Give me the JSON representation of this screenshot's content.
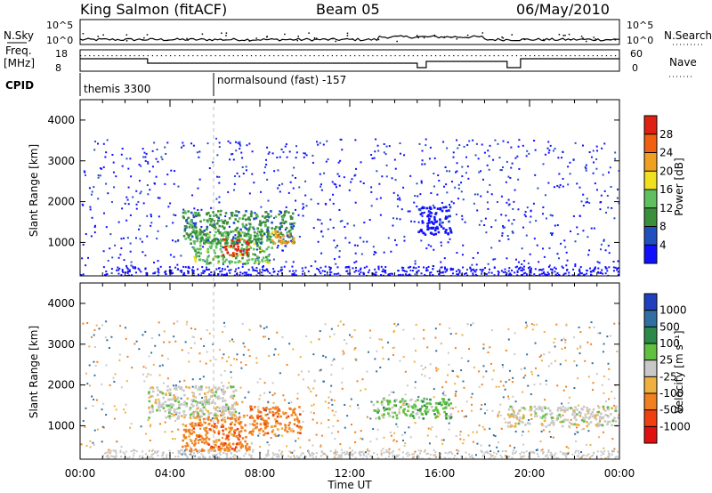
{
  "header": {
    "station": "King Salmon (fitACF)",
    "beam": "Beam 05",
    "date": "06/May/2010"
  },
  "summary_panels": {
    "nsky_label": "N.Sky",
    "nsearch_label": "N.Search",
    "noise_ticks": [
      "10^5",
      "10^0"
    ],
    "freq_label_line1": "Freq.",
    "freq_label_line2": "[MHz]",
    "freq_ticks": [
      "18",
      "8"
    ],
    "nave_label": "Nave",
    "nave_ticks": [
      "60",
      "0"
    ],
    "cpid_label": "CPID",
    "cpid_segments": [
      {
        "start_hour": 0,
        "end_hour": 6.0,
        "name": "themis 3300"
      },
      {
        "start_hour": 6.0,
        "end_hour": 24,
        "name": "normalsound (fast) -157"
      }
    ]
  },
  "colors": {
    "power": [
      "#1010ff",
      "#2050c0",
      "#3a8f3a",
      "#60c060",
      "#f0e020",
      "#f0a020",
      "#f06010",
      "#e02010"
    ],
    "velocity": [
      "#2040c0",
      "#3070a0",
      "#2a8a4a",
      "#60c040",
      "#c8c8c8",
      "#f0b040",
      "#f08020",
      "#f04010",
      "#e01010"
    ]
  },
  "chart_data": [
    {
      "type": "heatmap",
      "name": "power",
      "xlabel": "",
      "ylabel": "Slant Range [km]",
      "x_tick_labels": [
        "00:00",
        "04:00",
        "08:00",
        "12:00",
        "16:00",
        "20:00",
        "00:00"
      ],
      "xlim_hours": [
        0,
        24
      ],
      "yticks": [
        1000,
        2000,
        3000,
        4000
      ],
      "ylim": [
        180,
        4500
      ],
      "colorbar_label": "Power [dB]",
      "colorbar_ticks": [
        "4",
        "8",
        "12",
        "16",
        "20",
        "24",
        "28"
      ],
      "features": [
        {
          "t0": 5.0,
          "t1": 8.5,
          "r0": 500,
          "r1": 1300,
          "level": 3
        },
        {
          "t0": 6.3,
          "t1": 7.5,
          "r0": 700,
          "r1": 1100,
          "level": 7
        },
        {
          "t0": 4.5,
          "t1": 9.5,
          "r0": 1000,
          "r1": 1800,
          "level": 2
        },
        {
          "t0": 8.5,
          "t1": 9.5,
          "r0": 1000,
          "r1": 1300,
          "level": 5
        },
        {
          "t0": 15.0,
          "t1": 16.5,
          "r0": 1200,
          "r1": 1900,
          "level": 0
        }
      ]
    },
    {
      "type": "heatmap",
      "name": "velocity",
      "xlabel": "Time UT",
      "ylabel": "Slant Range [km]",
      "x_tick_labels": [
        "00:00",
        "04:00",
        "08:00",
        "12:00",
        "16:00",
        "20:00",
        "00:00"
      ],
      "xlim_hours": [
        0,
        24
      ],
      "yticks": [
        1000,
        2000,
        3000,
        4000
      ],
      "ylim": [
        180,
        4500
      ],
      "colorbar_label": "Velocity [m s⁻¹]",
      "colorbar_ticks": [
        "1000",
        "500",
        "100",
        "25",
        "-25",
        "-100",
        "-500",
        "-1000"
      ],
      "features": [
        {
          "t0": 3.0,
          "t1": 7.0,
          "r0": 1200,
          "r1": 2000,
          "level": 4
        },
        {
          "t0": 4.5,
          "t1": 7.5,
          "r0": 400,
          "r1": 1300,
          "level": 6
        },
        {
          "t0": 7.5,
          "t1": 9.8,
          "r0": 800,
          "r1": 1500,
          "level": 6
        },
        {
          "t0": 13.0,
          "t1": 16.5,
          "r0": 1200,
          "r1": 1700,
          "level": 3
        },
        {
          "t0": 19.0,
          "t1": 24.0,
          "r0": 1000,
          "r1": 1500,
          "level": 4
        }
      ]
    }
  ]
}
